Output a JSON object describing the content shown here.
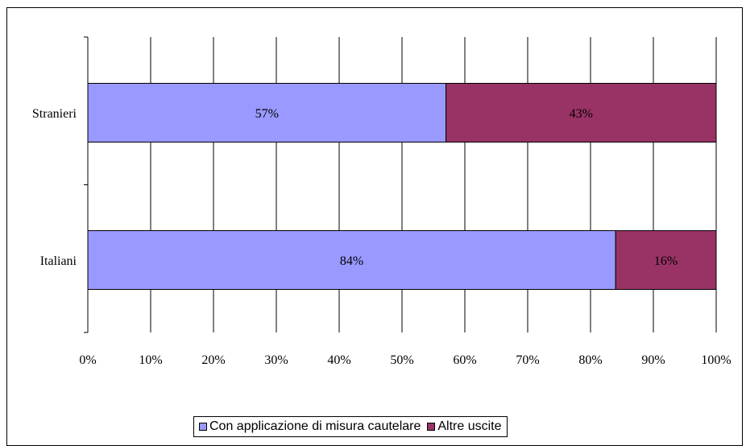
{
  "chart_data": {
    "type": "bar",
    "orientation": "horizontal",
    "stacked": true,
    "categories": [
      "Stranieri",
      "Italiani"
    ],
    "series": [
      {
        "name": "Con applicazione di misura cautelare",
        "values": [
          57,
          84
        ],
        "labels": [
          "57%",
          "84%"
        ],
        "color": "#9999FF"
      },
      {
        "name": "Altre uscite",
        "values": [
          43,
          16
        ],
        "labels": [
          "43%",
          "16%"
        ],
        "color": "#993366"
      }
    ],
    "x_ticks": [
      "0%",
      "10%",
      "20%",
      "30%",
      "40%",
      "50%",
      "60%",
      "70%",
      "80%",
      "90%",
      "100%"
    ],
    "xlim": [
      0,
      100
    ],
    "grid": true,
    "legend_position": "bottom"
  }
}
